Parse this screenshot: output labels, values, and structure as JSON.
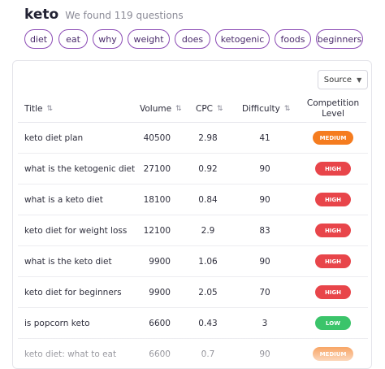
{
  "header": {
    "keyword": "keto",
    "found_text": "We found 119 questions"
  },
  "chips": [
    "diet",
    "eat",
    "why",
    "weight",
    "does",
    "ketogenic",
    "foods",
    "beginners"
  ],
  "source_button": {
    "label": "Source",
    "icon": "chevron-down-icon"
  },
  "table": {
    "columns": {
      "title": "Title",
      "volume": "Volume",
      "cpc": "CPC",
      "difficulty": "Difficulty",
      "competition": [
        "Competition",
        "Level"
      ]
    },
    "sort_icon": "⇅",
    "rows": [
      {
        "title": "keto diet plan",
        "volume": "40500",
        "cpc": "2.98",
        "difficulty": "41",
        "competition": "MEDIUM"
      },
      {
        "title": "what is the ketogenic diet",
        "volume": "27100",
        "cpc": "0.92",
        "difficulty": "90",
        "competition": "HIGH"
      },
      {
        "title": "what is a keto diet",
        "volume": "18100",
        "cpc": "0.84",
        "difficulty": "90",
        "competition": "HIGH"
      },
      {
        "title": "keto diet for weight loss",
        "volume": "12100",
        "cpc": "2.9",
        "difficulty": "83",
        "competition": "HIGH"
      },
      {
        "title": "what is the keto diet",
        "volume": "9900",
        "cpc": "1.06",
        "difficulty": "90",
        "competition": "HIGH"
      },
      {
        "title": "keto diet for beginners",
        "volume": "9900",
        "cpc": "2.05",
        "difficulty": "70",
        "competition": "HIGH"
      },
      {
        "title": "is popcorn keto",
        "volume": "6600",
        "cpc": "0.43",
        "difficulty": "3",
        "competition": "LOW"
      },
      {
        "title": "keto diet: what to eat",
        "volume": "6600",
        "cpc": "0.7",
        "difficulty": "90",
        "competition": "MEDIUM"
      }
    ]
  },
  "colors": {
    "MEDIUM": "#f57c1f",
    "HIGH": "#e8454a",
    "LOW": "#3bc46a",
    "chip_border": "#8b4bb5"
  }
}
